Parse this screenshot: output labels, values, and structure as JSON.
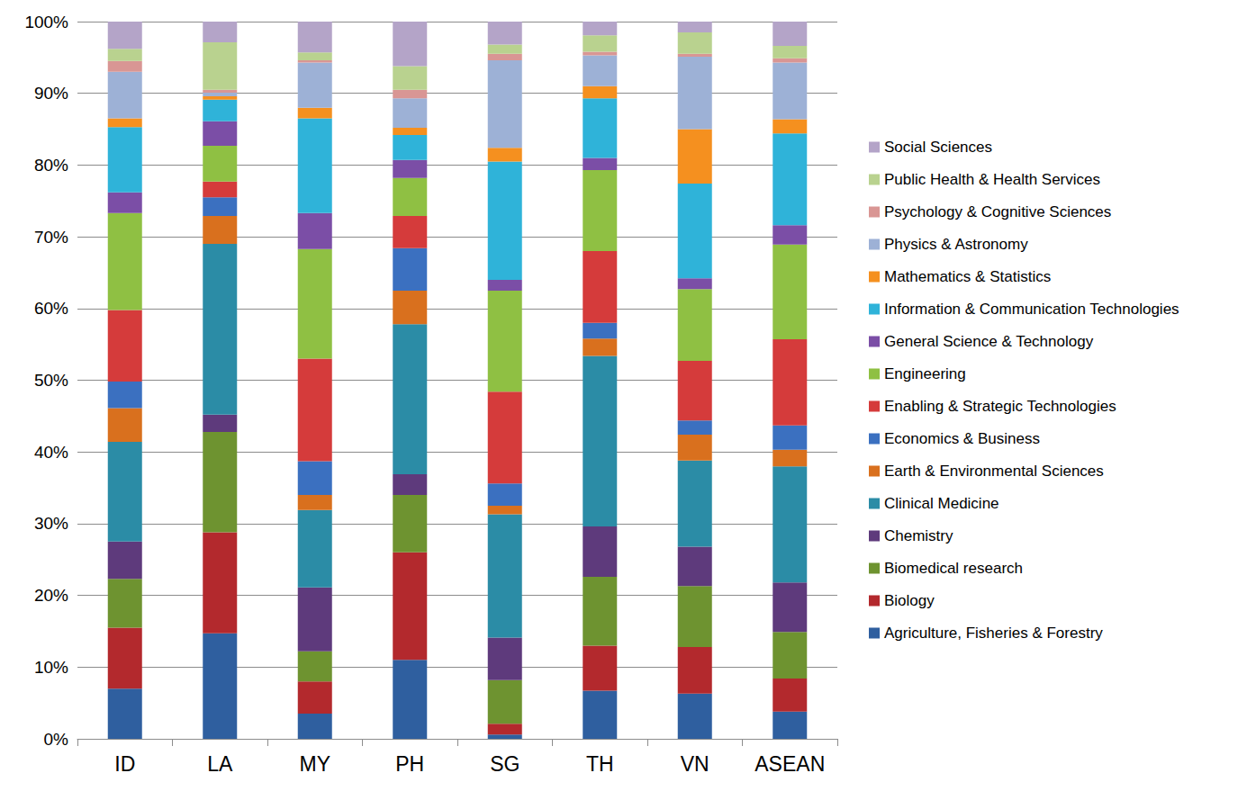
{
  "chart_data": {
    "type": "bar",
    "stacked": true,
    "grid": true,
    "legend": "right",
    "categories": [
      "ID",
      "LA",
      "MY",
      "PH",
      "SG",
      "TH",
      "VN",
      "ASEAN"
    ],
    "ylim": [
      0,
      100
    ],
    "yticks": [
      {
        "value": 0,
        "label": "0%"
      },
      {
        "value": 10,
        "label": "10%"
      },
      {
        "value": 20,
        "label": "20%"
      },
      {
        "value": 30,
        "label": "30%"
      },
      {
        "value": 40,
        "label": "40%"
      },
      {
        "value": 50,
        "label": "50%"
      },
      {
        "value": 60,
        "label": "60%"
      },
      {
        "value": 70,
        "label": "70%"
      },
      {
        "value": 80,
        "label": "80%"
      },
      {
        "value": 90,
        "label": "90%"
      },
      {
        "value": 100,
        "label": "100%"
      }
    ],
    "series": [
      {
        "name": "Agriculture, Fisheries & Forestry",
        "color": "#2f5f9f",
        "values": [
          7,
          14.7,
          3.5,
          11,
          0.6,
          6.7,
          6.3,
          3.8
        ]
      },
      {
        "name": "Biology",
        "color": "#b3292d",
        "values": [
          8.5,
          14.1,
          4.5,
          15,
          1.5,
          6.3,
          6.5,
          4.6
        ]
      },
      {
        "name": "Biomedical research",
        "color": "#6e9330",
        "values": [
          6.8,
          14,
          4.2,
          8,
          6.1,
          9.6,
          8.5,
          6.5
        ]
      },
      {
        "name": "Chemistry",
        "color": "#5e3a7c",
        "values": [
          5.2,
          2.4,
          8.9,
          2.9,
          5.9,
          7,
          5.5,
          6.9
        ]
      },
      {
        "name": "Clinical Medicine",
        "color": "#2b8ca6",
        "values": [
          13.9,
          23.8,
          10.8,
          20.9,
          17.2,
          23.8,
          12,
          16.2
        ]
      },
      {
        "name": "Earth & Environmental Sciences",
        "color": "#d9701e",
        "values": [
          4.7,
          3.9,
          2.1,
          4.7,
          1.2,
          2.4,
          3.6,
          2.3
        ]
      },
      {
        "name": "Economics & Business",
        "color": "#3b70c0",
        "values": [
          3.7,
          2.6,
          4.7,
          5.9,
          3.1,
          2.2,
          2,
          3.4
        ]
      },
      {
        "name": "Enabling & Strategic Technologies",
        "color": "#d53b3b",
        "values": [
          10,
          2.2,
          14.3,
          4.5,
          12.8,
          10,
          8.3,
          12
        ]
      },
      {
        "name": "Engineering",
        "color": "#8fc043",
        "values": [
          13.5,
          5,
          15.3,
          5.3,
          14.1,
          11.3,
          10,
          13.2
        ]
      },
      {
        "name": "General Science & Technology",
        "color": "#7b4ea6",
        "values": [
          2.9,
          3.4,
          5,
          2.5,
          1.5,
          1.7,
          1.5,
          2.7
        ]
      },
      {
        "name": "Information & Communication Technologies",
        "color": "#2fb3d9",
        "values": [
          9.1,
          3,
          13.2,
          3.5,
          16.5,
          8.3,
          13.2,
          12.8
        ]
      },
      {
        "name": "Mathematics & Statistics",
        "color": "#f5901f",
        "values": [
          1.2,
          0.5,
          1.5,
          1,
          1.9,
          1.7,
          7.6,
          2
        ]
      },
      {
        "name": "Physics & Astronomy",
        "color": "#9db1d6",
        "values": [
          6.5,
          0.5,
          6.3,
          4.1,
          12.2,
          4.3,
          10.1,
          7.9
        ]
      },
      {
        "name": "Psychology & Cognitive Sciences",
        "color": "#d99694",
        "values": [
          1.5,
          0.4,
          0.3,
          1.2,
          0.9,
          0.5,
          0.4,
          0.6
        ]
      },
      {
        "name": "Public Health & Health Services",
        "color": "#b9d28f",
        "values": [
          1.7,
          6.6,
          1.1,
          3.3,
          1.3,
          2.3,
          3,
          1.7
        ]
      },
      {
        "name": "Social Sciences",
        "color": "#b4a4c8",
        "values": [
          3.8,
          2.9,
          4.3,
          6.2,
          3.2,
          1.9,
          1.5,
          3.4
        ]
      }
    ]
  }
}
